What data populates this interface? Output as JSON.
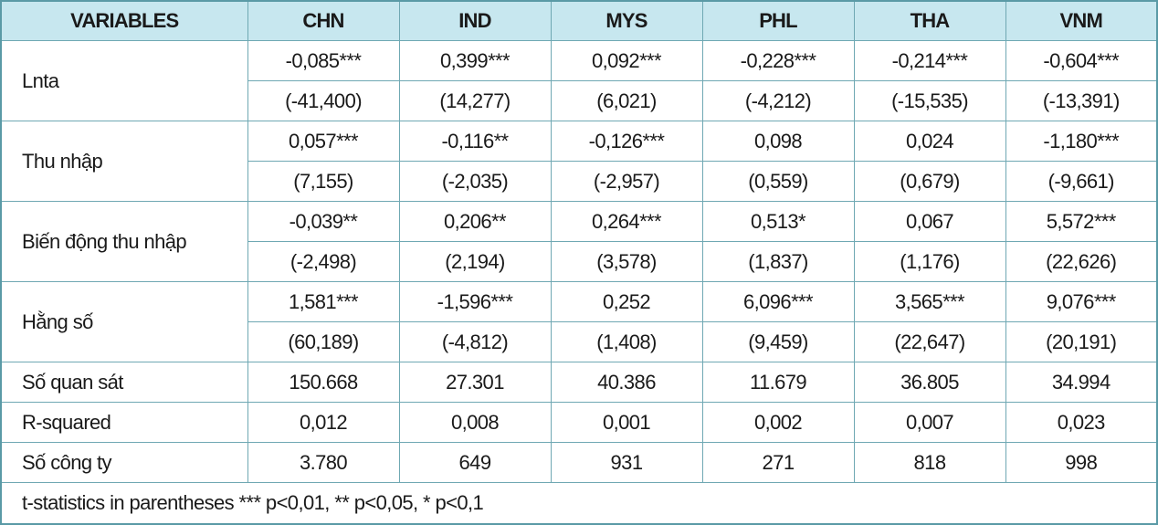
{
  "table": {
    "headers": [
      "VARIABLES",
      "CHN",
      "IND",
      "MYS",
      "PHL",
      "THA",
      "VNM"
    ],
    "grouped_rows": [
      {
        "label": "Lnta",
        "coef": [
          "-0,085***",
          "0,399***",
          "0,092***",
          "-0,228***",
          "-0,214***",
          "-0,604***"
        ],
        "tstat": [
          "(-41,400)",
          "(14,277)",
          "(6,021)",
          "(-4,212)",
          "(-15,535)",
          "(-13,391)"
        ]
      },
      {
        "label": "Thu nhập",
        "coef": [
          "0,057***",
          "-0,116**",
          "-0,126***",
          "0,098",
          "0,024",
          "-1,180***"
        ],
        "tstat": [
          "(7,155)",
          "(-2,035)",
          "(-2,957)",
          "(0,559)",
          "(0,679)",
          "(-9,661)"
        ]
      },
      {
        "label": "Biến động thu nhập",
        "coef": [
          "-0,039**",
          "0,206**",
          "0,264***",
          "0,513*",
          "0,067",
          "5,572***"
        ],
        "tstat": [
          "(-2,498)",
          "(2,194)",
          "(3,578)",
          "(1,837)",
          "(1,176)",
          "(22,626)"
        ]
      },
      {
        "label": "Hằng số",
        "coef": [
          "1,581***",
          "-1,596***",
          "0,252",
          "6,096***",
          "3,565***",
          "9,076***"
        ],
        "tstat": [
          "(60,189)",
          "(-4,812)",
          "(1,408)",
          "(9,459)",
          "(22,647)",
          "(20,191)"
        ]
      }
    ],
    "stat_rows": [
      {
        "label": "Số quan sát",
        "values": [
          "150.668",
          "27.301",
          "40.386",
          "11.679",
          "36.805",
          "34.994"
        ]
      },
      {
        "label": "R-squared",
        "values": [
          "0,012",
          "0,008",
          "0,001",
          "0,002",
          "0,007",
          "0,023"
        ]
      },
      {
        "label": "Số công ty",
        "values": [
          "3.780",
          "649",
          "931",
          "271",
          "818",
          "998"
        ]
      }
    ],
    "note": "t-statistics in parentheses  *** p<0,01, ** p<0,05, * p<0,1"
  },
  "colors": {
    "header_bg": "#c7e7ef",
    "border": "#6fa8b3"
  }
}
